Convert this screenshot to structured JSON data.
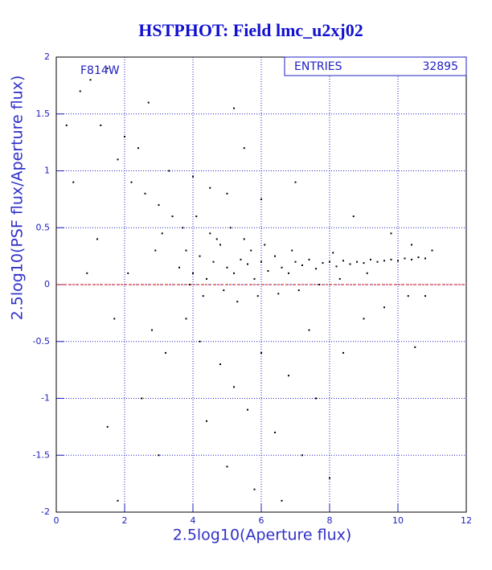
{
  "chart_data": {
    "type": "scatter",
    "title": "HSTPHOT: Field lmc_u2xj02",
    "x_label": "2.5log10(Aperture flux)",
    "y_label": "2.5log10(PSF flux/Aperture flux)",
    "annotation": "F814W",
    "stats_label": "ENTRIES",
    "stats_value": 32895,
    "xlim": [
      0,
      12
    ],
    "ylim": [
      -2,
      2
    ],
    "xticks": [
      0,
      2,
      4,
      6,
      8,
      10,
      12
    ],
    "yticks": [
      -2,
      -1.5,
      -1,
      -0.5,
      0,
      0.5,
      1,
      1.5,
      2
    ],
    "grid": true,
    "color": "#000000",
    "reference_line": 0,
    "reference_color": "#cc0000",
    "x": [
      3.6,
      3.8,
      4.0,
      4.2,
      4.4,
      4.6,
      4.8,
      5.0,
      5.2,
      5.4,
      5.6,
      5.8,
      6.0,
      6.2,
      6.4,
      6.6,
      6.8,
      7.0,
      7.2,
      7.4,
      7.6,
      7.8,
      8.0,
      8.2,
      8.4,
      8.6,
      8.8,
      9.0,
      9.2,
      9.4,
      9.6,
      9.8,
      10.0,
      10.2,
      10.4,
      10.6,
      10.8,
      3.7,
      4.1,
      4.5,
      5.1,
      5.5,
      6.1,
      4.3,
      4.9,
      5.3,
      5.9,
      6.5,
      7.1,
      7.7,
      8.3,
      3.9,
      4.7,
      5.7,
      6.9,
      8.1,
      9.1,
      4.2,
      4.8,
      5.2,
      5.6,
      6.0,
      6.4,
      6.8,
      7.2,
      7.6,
      8.0,
      3.8,
      4.4,
      5.0,
      5.8,
      6.6,
      7.4,
      8.4,
      9.0,
      9.6,
      10.3,
      10.5,
      10.8,
      3.2,
      2.5,
      1.5,
      2.8,
      3.0,
      1.8,
      1.0,
      0.7,
      1.3,
      1.5,
      2.0,
      2.4,
      2.7,
      1.8,
      2.2,
      2.6,
      3.0,
      3.3,
      3.1,
      2.9,
      3.4,
      4.0,
      4.5,
      5.0,
      6.0,
      7.0,
      5.5,
      8.7,
      9.8,
      0.3,
      0.5,
      1.2,
      0.9,
      1.7,
      2.1,
      5.2,
      10.4,
      11.0
    ],
    "values": [
      0.15,
      0.3,
      0.1,
      0.25,
      0.05,
      0.2,
      0.35,
      0.15,
      0.1,
      0.22,
      0.18,
      0.05,
      0.2,
      0.12,
      0.25,
      0.15,
      0.1,
      0.2,
      0.17,
      0.22,
      0.14,
      0.19,
      0.2,
      0.16,
      0.21,
      0.18,
      0.2,
      0.19,
      0.22,
      0.2,
      0.21,
      0.22,
      0.21,
      0.23,
      0.22,
      0.24,
      0.23,
      0.5,
      0.6,
      0.45,
      0.5,
      0.4,
      0.35,
      -0.1,
      -0.05,
      -0.15,
      -0.1,
      -0.08,
      -0.05,
      0.0,
      0.05,
      0.0,
      0.4,
      0.3,
      0.3,
      0.28,
      0.1,
      -0.5,
      -0.7,
      -0.9,
      -1.1,
      -0.6,
      -1.3,
      -0.8,
      -1.5,
      -1.0,
      -1.7,
      -0.3,
      -1.2,
      -1.6,
      -1.8,
      -1.9,
      -0.4,
      -0.6,
      -0.3,
      -0.2,
      -0.1,
      -0.55,
      -0.1,
      -0.6,
      -1.0,
      -1.25,
      -0.4,
      -1.5,
      -1.9,
      1.8,
      1.7,
      1.4,
      1.9,
      1.3,
      1.2,
      1.6,
      1.1,
      0.9,
      0.8,
      0.7,
      1.0,
      0.45,
      0.3,
      0.6,
      0.95,
      0.85,
      0.8,
      0.75,
      0.9,
      1.2,
      0.6,
      0.45,
      1.4,
      0.9,
      0.4,
      0.1,
      -0.3,
      0.1,
      1.55,
      0.35,
      0.3
    ]
  }
}
